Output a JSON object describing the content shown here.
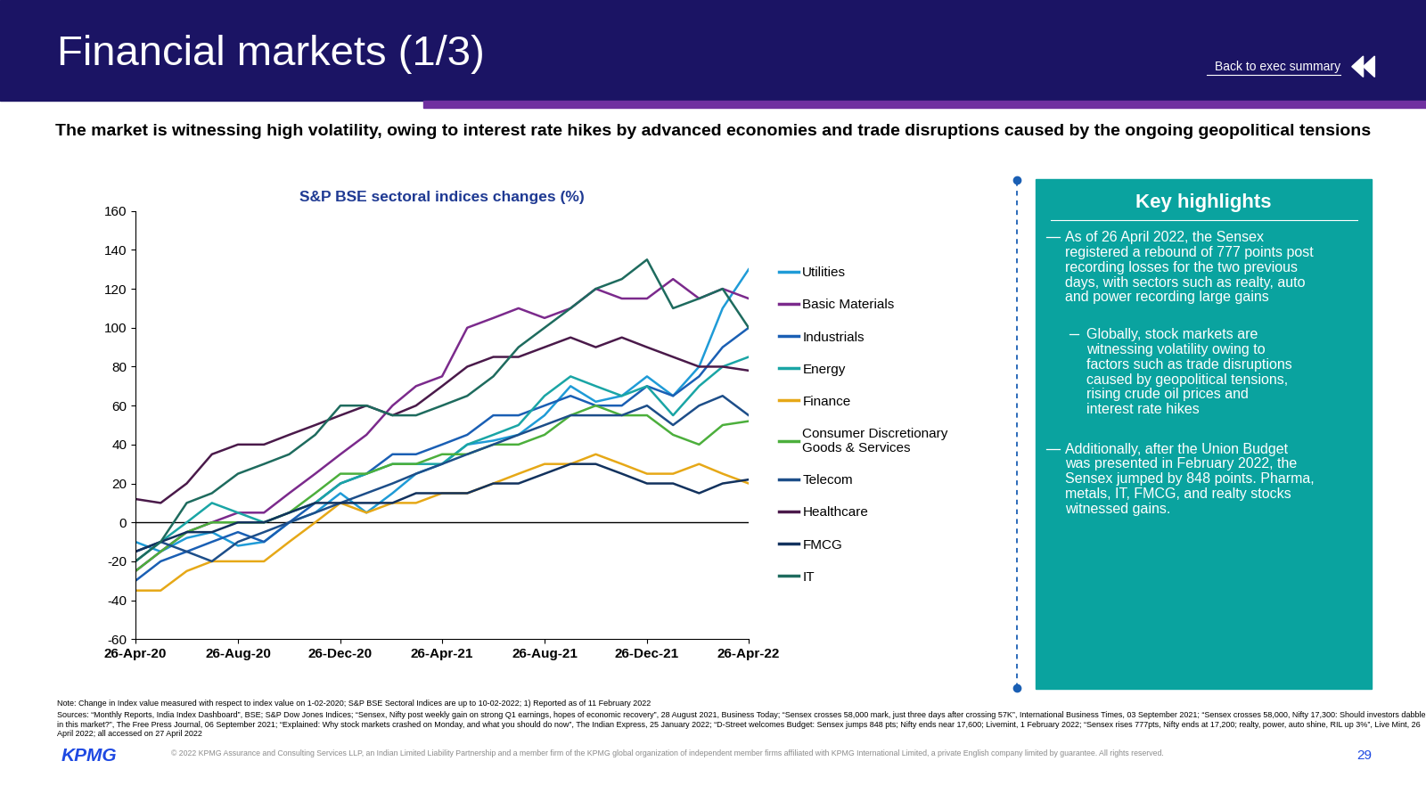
{
  "header": {
    "title": "Financial markets (1/3)",
    "link": "Back to exec summary",
    "subtitle": "The market is witnessing high volatility, owing to interest rate hikes by advanced economies and trade disruptions caused by the ongoing geopolitical tensions"
  },
  "chart_data": {
    "type": "line",
    "title": "S&P BSE sectoral indices changes (%)",
    "x": [
      "2020-04-26",
      "2020-05-26",
      "2020-06-26",
      "2020-07-26",
      "2020-08-26",
      "2020-09-26",
      "2020-10-26",
      "2020-11-26",
      "2020-12-26",
      "2021-01-26",
      "2021-02-26",
      "2021-03-26",
      "2021-04-26",
      "2021-05-26",
      "2021-06-26",
      "2021-07-26",
      "2021-08-26",
      "2021-09-26",
      "2021-10-26",
      "2021-11-26",
      "2021-12-26",
      "2022-01-26",
      "2022-02-26",
      "2022-03-26",
      "2022-04-26"
    ],
    "xlim": [
      "2020-04-26",
      "2022-04-26"
    ],
    "xticks": [
      {
        "value": "2020-04-26",
        "label": "26-Apr-20"
      },
      {
        "value": "2020-08-26",
        "label": "26-Aug-20"
      },
      {
        "value": "2020-12-26",
        "label": "26-Dec-20"
      },
      {
        "value": "2021-04-26",
        "label": "26-Apr-21"
      },
      {
        "value": "2021-08-26",
        "label": "26-Aug-21"
      },
      {
        "value": "2021-12-26",
        "label": "26-Dec-21"
      },
      {
        "value": "2022-04-26",
        "label": "26-Apr-22"
      }
    ],
    "ylim": [
      -60,
      160
    ],
    "yticks": [
      -60,
      -40,
      -20,
      0,
      20,
      40,
      60,
      80,
      100,
      120,
      140,
      160
    ],
    "grid": false,
    "legend": "center left",
    "series": [
      {
        "name": "Utilities",
        "color": "#1f9bd7",
        "values": [
          -10,
          -15,
          -8,
          -5,
          -12,
          -10,
          0,
          5,
          15,
          5,
          15,
          25,
          30,
          40,
          42,
          45,
          55,
          70,
          62,
          65,
          75,
          65,
          80,
          110,
          130
        ]
      },
      {
        "name": "Basic Materials",
        "color": "#7b2a8c",
        "values": [
          -25,
          -15,
          -5,
          0,
          5,
          5,
          15,
          25,
          35,
          45,
          60,
          70,
          75,
          100,
          105,
          110,
          105,
          110,
          120,
          115,
          115,
          125,
          115,
          120,
          115
        ]
      },
      {
        "name": "Industrials",
        "color": "#1a5fb4",
        "values": [
          -30,
          -20,
          -15,
          -10,
          -5,
          -10,
          0,
          10,
          20,
          25,
          35,
          35,
          40,
          45,
          55,
          55,
          60,
          65,
          60,
          60,
          70,
          65,
          75,
          90,
          100
        ]
      },
      {
        "name": "Energy",
        "color": "#1aa5a5",
        "values": [
          -20,
          -10,
          0,
          10,
          5,
          0,
          5,
          10,
          20,
          25,
          30,
          30,
          30,
          40,
          45,
          50,
          65,
          75,
          70,
          65,
          70,
          55,
          70,
          80,
          85
        ]
      },
      {
        "name": "Finance",
        "color": "#e6a817",
        "values": [
          -35,
          -35,
          -25,
          -20,
          -20,
          -20,
          -10,
          0,
          10,
          5,
          10,
          10,
          15,
          15,
          20,
          25,
          30,
          30,
          35,
          30,
          25,
          25,
          30,
          25,
          20
        ]
      },
      {
        "name": "Consumer Discretionary Goods & Services",
        "color": "#4caf3c",
        "values": [
          -25,
          -15,
          -5,
          0,
          0,
          0,
          5,
          15,
          25,
          25,
          30,
          30,
          35,
          35,
          40,
          40,
          45,
          55,
          60,
          55,
          55,
          45,
          40,
          50,
          52
        ]
      },
      {
        "name": "Telecom",
        "color": "#1d4e89",
        "values": [
          -15,
          -10,
          -15,
          -20,
          -10,
          -5,
          0,
          5,
          10,
          15,
          20,
          25,
          30,
          35,
          40,
          45,
          50,
          55,
          55,
          55,
          60,
          50,
          60,
          65,
          55
        ]
      },
      {
        "name": "Healthcare",
        "color": "#4a1a4a",
        "values": [
          12,
          10,
          20,
          35,
          40,
          40,
          45,
          50,
          55,
          60,
          55,
          60,
          70,
          80,
          85,
          85,
          90,
          95,
          90,
          95,
          90,
          85,
          80,
          80,
          78
        ]
      },
      {
        "name": "FMCG",
        "color": "#12325e",
        "values": [
          -15,
          -10,
          -5,
          -5,
          0,
          0,
          5,
          10,
          10,
          10,
          10,
          15,
          15,
          15,
          20,
          20,
          25,
          30,
          30,
          25,
          20,
          20,
          15,
          20,
          22
        ]
      },
      {
        "name": "IT",
        "color": "#1e6b5e",
        "values": [
          -20,
          -10,
          10,
          15,
          25,
          30,
          35,
          45,
          60,
          60,
          55,
          55,
          60,
          65,
          75,
          90,
          100,
          110,
          120,
          125,
          135,
          110,
          115,
          120,
          100
        ]
      }
    ]
  },
  "key_highlights": {
    "title": "Key highlights",
    "bullets": [
      {
        "text": "As of 26 April 2022, the Sensex registered a rebound of 777 points post recording losses for the two previous days, with sectors such as realty, auto and power recording large gains",
        "sub_bullets": [
          "Globally, stock markets are witnessing volatility owing to factors such as trade disruptions caused by geopolitical tensions, rising crude oil prices and interest rate hikes"
        ]
      },
      {
        "text": "Additionally, after the Union Budget was presented in February 2022, the Sensex jumped by 848 points. Pharma, metals, IT, FMCG, and realty stocks witnessed gains.",
        "sub_bullets": []
      }
    ]
  },
  "notes": {
    "note": "Note: Change in Index value measured with respect to index value on 1-02-2020; S&P BSE Sectoral Indices are up to 10-02-2022; 1) Reported as of 11 February 2022",
    "sources": "Sources: “Monthly Reports, India Index Dashboard”, BSE; S&P Dow Jones Indices; “Sensex, Nifty post weekly gain on strong Q1 earnings, hopes of economic recovery”, 28 August 2021, Business Today; “Sensex crosses 58,000 mark, just three days after crossing 57K”, International Business Times, 03 September 2021; “Sensex crosses 58,000, Nifty 17,300: Should investors dabble in this market?”, The Free Press Journal, 06 September 2021; “Explained: Why stock markets crashed on Monday, and what you should do now”, The Indian Express, 25 January 2022; “D-Street welcomes Budget: Sensex jumps 848 pts; Nifty ends near 17,600; Livemint, 1 February 2022; “Sensex rises 777pts, Nifty ends at 17,200; realty, power, auto shine, RIL up 3%”, Live Mint, 26 April 2022; all accessed on 27 April 2022"
  },
  "footer": {
    "logo": "KPMG",
    "copyright": "© 2022 KPMG Assurance and Consulting Services LLP, an Indian Limited Liability Partnership and a member firm of the KPMG global organization of independent member firms affiliated with KPMG International Limited, a private English company limited by guarantee. All rights reserved.",
    "page": 29
  }
}
